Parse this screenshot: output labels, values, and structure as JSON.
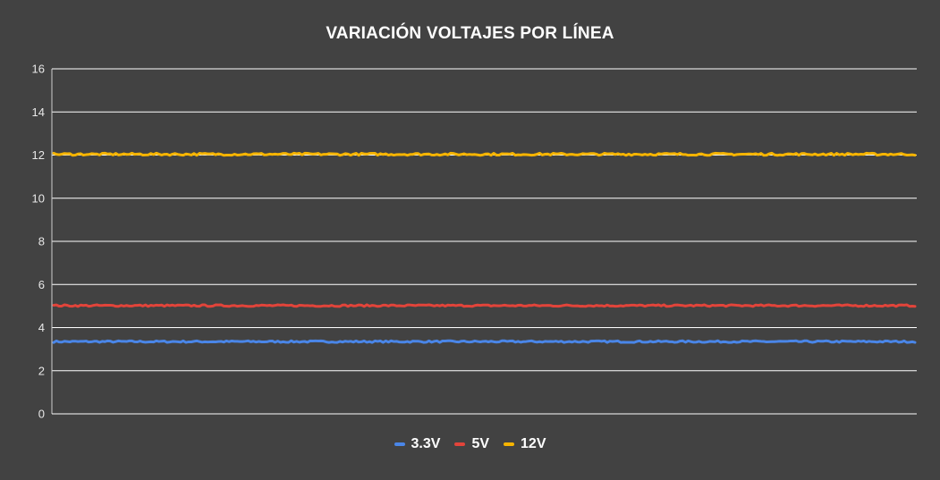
{
  "chart_data": {
    "type": "line",
    "title": "VARIACIÓN VOLTAJES POR LÍNEA",
    "xlabel": "",
    "ylabel": "",
    "ylim": [
      0,
      16
    ],
    "yticks": [
      "0",
      "2",
      "4",
      "6",
      "8",
      "10",
      "12",
      "14",
      "16"
    ],
    "grid": true,
    "legend_position": "bottom",
    "samples": 320,
    "series": [
      {
        "name": "3.3V",
        "color": "#4a86e8",
        "nominal": 3.35,
        "jitter": 0.04
      },
      {
        "name": "5V",
        "color": "#e2443a",
        "nominal": 5.02,
        "jitter": 0.04
      },
      {
        "name": "12V",
        "color": "#f6b400",
        "nominal": 12.04,
        "jitter": 0.05
      }
    ]
  }
}
